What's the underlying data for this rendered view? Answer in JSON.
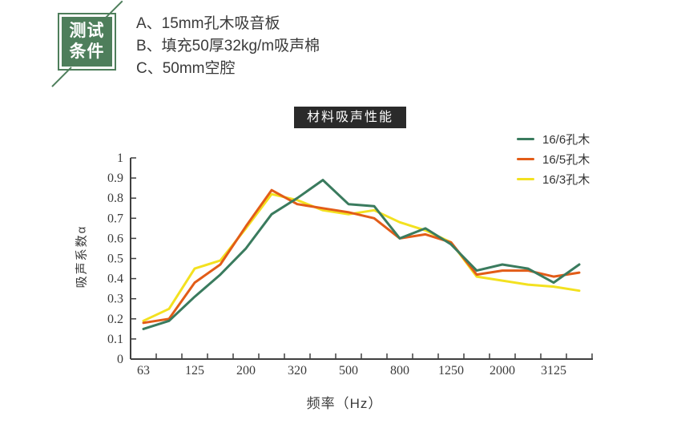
{
  "badge": {
    "line1": "测试",
    "line2": "条件",
    "color": "#4E7E5B"
  },
  "conditions": {
    "items": [
      "A、15mm孔木吸音板",
      "B、填充50厚32kg/m吸声棉",
      "C、50mm空腔"
    ]
  },
  "chart_data": {
    "type": "line",
    "title": "材料吸声性能",
    "title_bg": "#2A2A2A",
    "xlabel": "频率（Hz）",
    "ylabel": "吸声系数α",
    "x_categories": [
      63,
      80,
      125,
      160,
      200,
      250,
      320,
      400,
      500,
      630,
      800,
      1000,
      1250,
      1600,
      2000,
      2500,
      3125,
      4000
    ],
    "x_tick_labels": [
      "63",
      "125",
      "200",
      "320",
      "500",
      "800",
      "1250",
      "2000",
      "3125"
    ],
    "y_tick_labels": [
      "0",
      "0.1",
      "0.2",
      "0.3",
      "0.4",
      "0.5",
      "0.6",
      "0.7",
      "0.8",
      "0.9",
      "1"
    ],
    "ylim": [
      0,
      1
    ],
    "grid": false,
    "legend_position": "top-right",
    "axis_color": "#404040",
    "series": [
      {
        "name": "16/6孔木",
        "color": "#3A7B5E",
        "values": [
          0.15,
          0.19,
          0.31,
          0.42,
          0.55,
          0.72,
          0.8,
          0.89,
          0.77,
          0.76,
          0.6,
          0.65,
          0.57,
          0.44,
          0.47,
          0.45,
          0.38,
          0.47
        ]
      },
      {
        "name": "16/5孔木",
        "color": "#E25C18",
        "values": [
          0.18,
          0.2,
          0.38,
          0.47,
          0.66,
          0.84,
          0.77,
          0.75,
          0.73,
          0.7,
          0.6,
          0.62,
          0.58,
          0.42,
          0.44,
          0.44,
          0.41,
          0.43
        ]
      },
      {
        "name": "16/3孔木",
        "color": "#F3E120",
        "values": [
          0.19,
          0.25,
          0.45,
          0.49,
          0.65,
          0.82,
          0.79,
          0.74,
          0.72,
          0.74,
          0.68,
          0.64,
          0.58,
          0.41,
          0.39,
          0.37,
          0.36,
          0.34
        ]
      }
    ]
  }
}
